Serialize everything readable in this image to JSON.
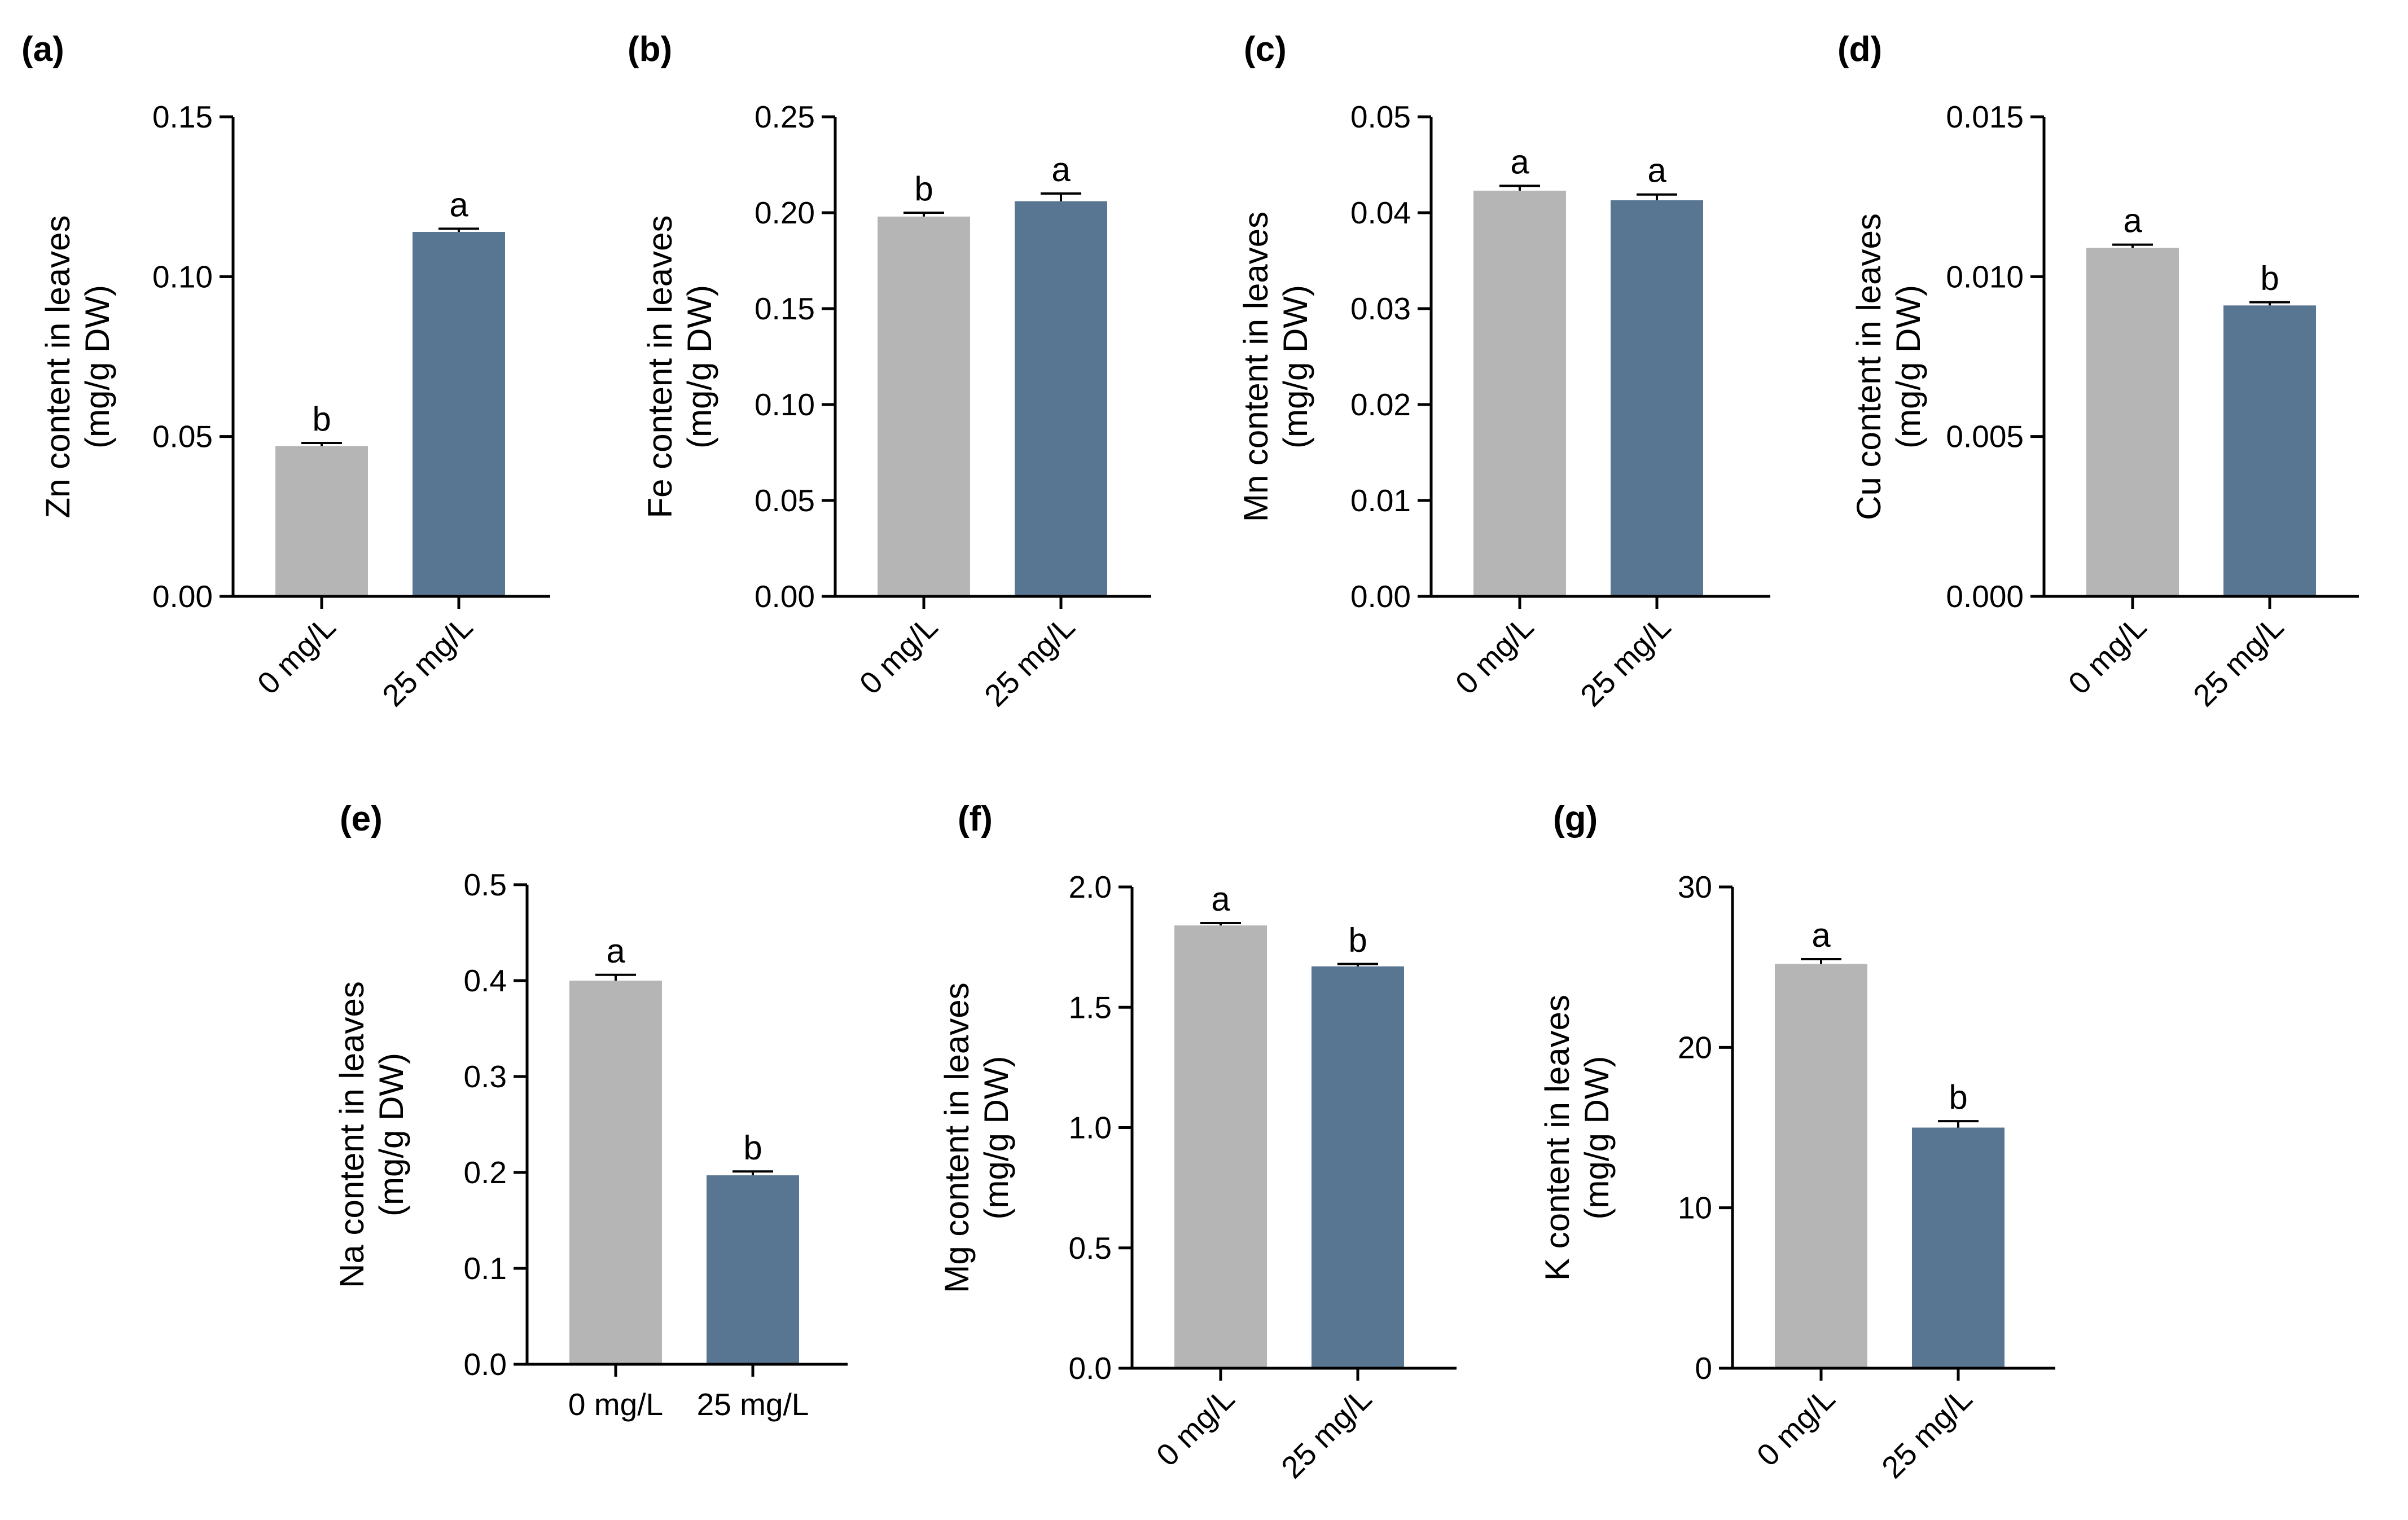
{
  "chart_data": [
    {
      "type": "bar",
      "panel": "(a)",
      "ylabel_lines": [
        "Zn content in leaves",
        "(mg/g DW)"
      ],
      "categories": [
        "0 mg/L",
        "25 mg/L"
      ],
      "values": [
        0.047,
        0.114
      ],
      "errors": [
        0.001,
        0.001
      ],
      "letters": [
        "b",
        "a"
      ],
      "ylim": [
        0,
        0.15
      ],
      "yticks": [
        "0.00",
        "0.05",
        "0.10",
        "0.15"
      ],
      "rotated_xlabels": true
    },
    {
      "type": "bar",
      "panel": "(b)",
      "ylabel_lines": [
        "Fe content in leaves",
        "(mg/g DW)"
      ],
      "categories": [
        "0 mg/L",
        "25 mg/L"
      ],
      "values": [
        0.198,
        0.206
      ],
      "errors": [
        0.002,
        0.004
      ],
      "letters": [
        "b",
        "a"
      ],
      "ylim": [
        0,
        0.25
      ],
      "yticks": [
        "0.00",
        "0.05",
        "0.10",
        "0.15",
        "0.20",
        "0.25"
      ],
      "rotated_xlabels": true
    },
    {
      "type": "bar",
      "panel": "(c)",
      "ylabel_lines": [
        "Mn content in leaves",
        "(mg/g DW)"
      ],
      "categories": [
        "0 mg/L",
        "25 mg/L"
      ],
      "values": [
        0.0423,
        0.0413
      ],
      "errors": [
        0.0005,
        0.0006
      ],
      "letters": [
        "a",
        "a"
      ],
      "ylim": [
        0,
        0.05
      ],
      "yticks": [
        "0.00",
        "0.01",
        "0.02",
        "0.03",
        "0.04",
        "0.05"
      ],
      "rotated_xlabels": true
    },
    {
      "type": "bar",
      "panel": "(d)",
      "ylabel_lines": [
        "Cu content in leaves",
        "(mg/g DW)"
      ],
      "categories": [
        "0 mg/L",
        "25 mg/L"
      ],
      "values": [
        0.0109,
        0.0091
      ],
      "errors": [
        0.0001,
        0.0001
      ],
      "letters": [
        "a",
        "b"
      ],
      "ylim": [
        0,
        0.015
      ],
      "yticks": [
        "0.000",
        "0.005",
        "0.010",
        "0.015"
      ],
      "rotated_xlabels": true
    },
    {
      "type": "bar",
      "panel": "(e)",
      "ylabel_lines": [
        "Na content in leaves",
        "(mg/g DW)"
      ],
      "categories": [
        "0 mg/L",
        "25 mg/L"
      ],
      "values": [
        0.4,
        0.197
      ],
      "errors": [
        0.006,
        0.004
      ],
      "letters": [
        "a",
        "b"
      ],
      "ylim": [
        0,
        0.5
      ],
      "yticks": [
        "0.0",
        "0.1",
        "0.2",
        "0.3",
        "0.4",
        "0.5"
      ],
      "rotated_xlabels": false
    },
    {
      "type": "bar",
      "panel": "(f)",
      "ylabel_lines": [
        "Mg content in leaves",
        "(mg/g DW)"
      ],
      "categories": [
        "0 mg/L",
        "25 mg/L"
      ],
      "values": [
        1.84,
        1.67
      ],
      "errors": [
        0.01,
        0.01
      ],
      "letters": [
        "a",
        "b"
      ],
      "ylim": [
        0,
        2.0
      ],
      "yticks": [
        "0.0",
        "0.5",
        "1.0",
        "1.5",
        "2.0"
      ],
      "rotated_xlabels": true
    },
    {
      "type": "bar",
      "panel": "(g)",
      "ylabel_lines": [
        "K content in leaves",
        "(mg/g DW)"
      ],
      "categories": [
        "0 mg/L",
        "25 mg/L"
      ],
      "values": [
        25.2,
        15.0
      ],
      "errors": [
        0.3,
        0.4
      ],
      "letters": [
        "a",
        "b"
      ],
      "ylim": [
        0,
        30
      ],
      "yticks": [
        "0",
        "10",
        "20",
        "30"
      ],
      "rotated_xlabels": true
    }
  ],
  "colors": {
    "control_bar": "#b5b5b5",
    "treatment_bar": "#587591",
    "axis": "#000000"
  }
}
